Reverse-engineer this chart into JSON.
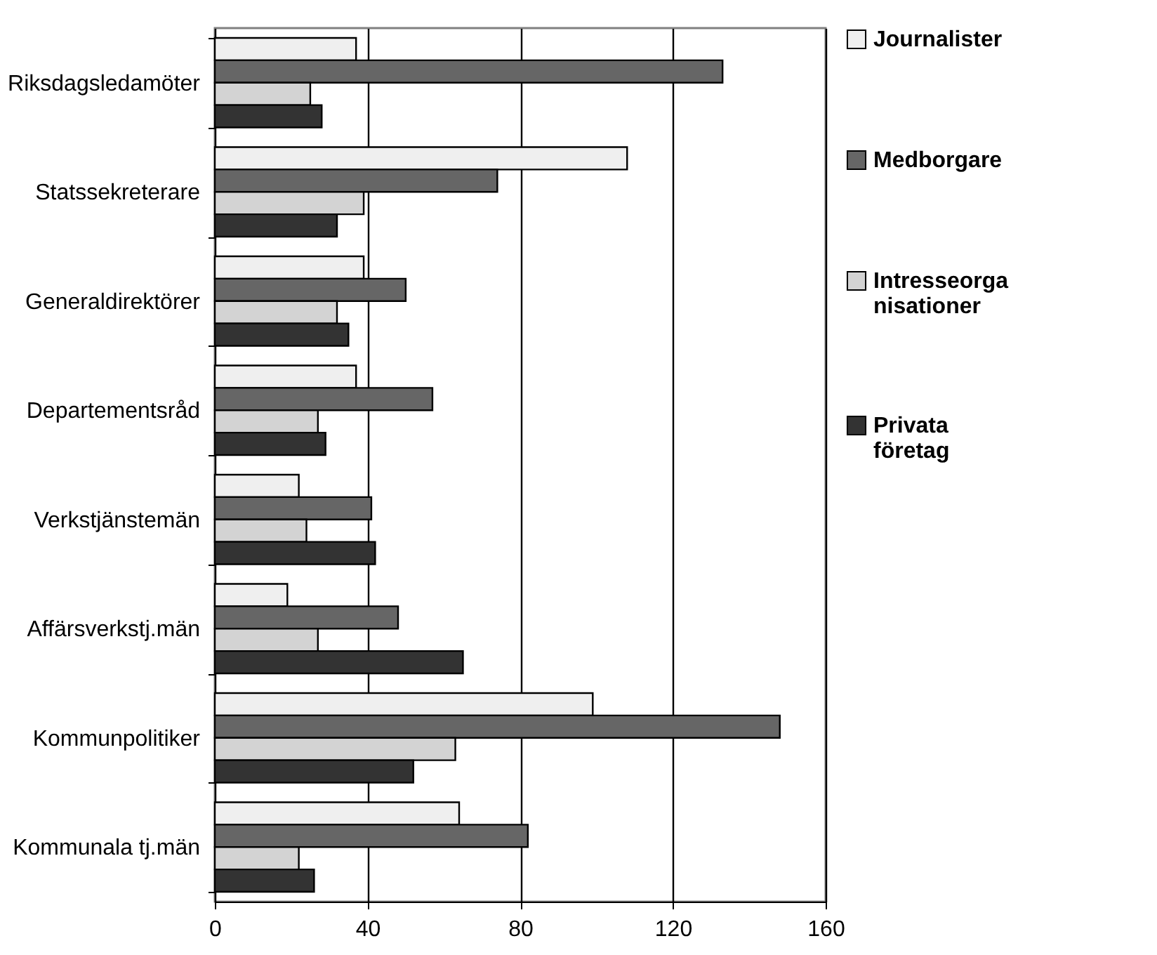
{
  "chart_data": {
    "type": "bar",
    "orientation": "horizontal",
    "categories": [
      "Riksdagsledamöter",
      "Statssekreterare",
      "Generaldirektörer",
      "Departementsråd",
      "Verkstjänstemän",
      "Affärsverkstj.män",
      "Kommunpolitiker",
      "Kommunala tj.män"
    ],
    "series": [
      {
        "name": "Journalister",
        "color": "#efefef",
        "values": [
          37,
          108,
          39,
          37,
          22,
          19,
          99,
          64
        ]
      },
      {
        "name": "Medborgare",
        "color": "#666666",
        "values": [
          133,
          74,
          50,
          57,
          41,
          48,
          148,
          82
        ]
      },
      {
        "name": "Intresseorganisationer",
        "color": "#d3d3d3",
        "values": [
          25,
          39,
          32,
          27,
          24,
          27,
          63,
          22
        ]
      },
      {
        "name": "Privata företag",
        "color": "#333333",
        "values": [
          28,
          32,
          35,
          29,
          42,
          65,
          52,
          26
        ]
      }
    ],
    "xlim": [
      0,
      160
    ],
    "xticks": [
      0,
      40,
      80,
      120,
      160
    ],
    "grid": "x",
    "legend": "right"
  }
}
